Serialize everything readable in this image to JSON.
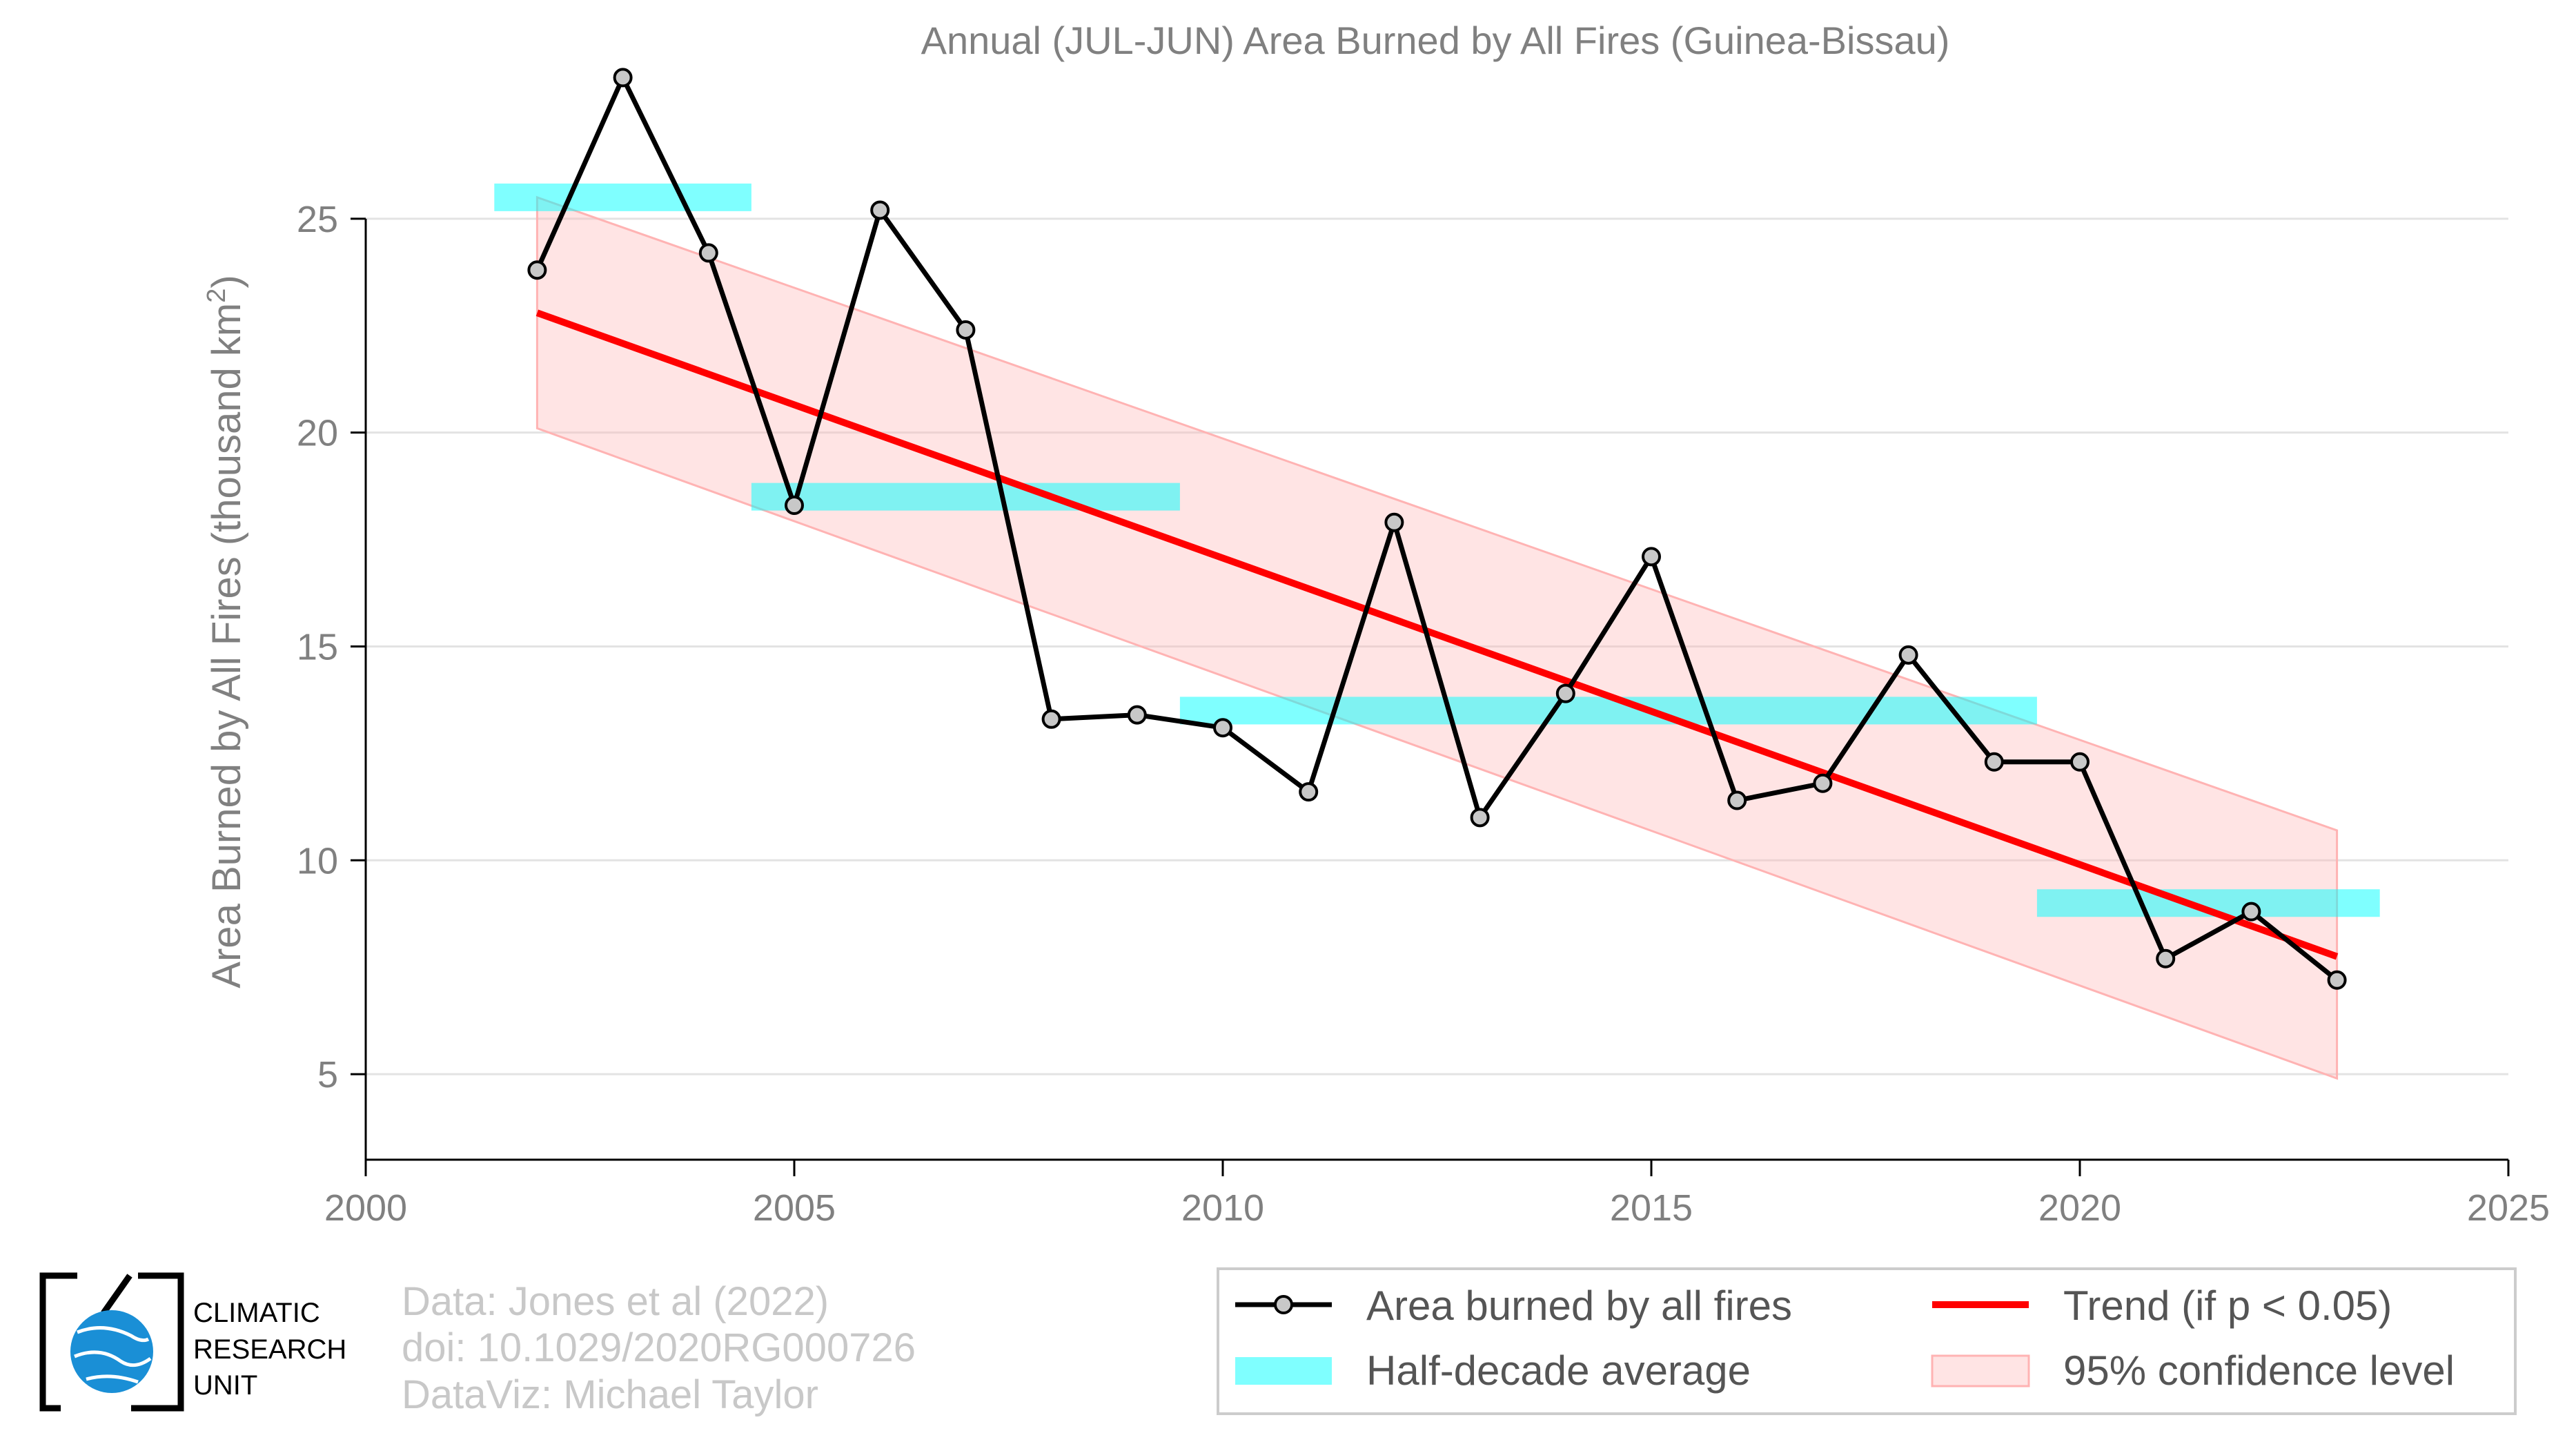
{
  "chart_data": {
    "type": "line",
    "title": "Annual (JUL-JUN) Area Burned by All Fires (Guinea-Bissau)",
    "xlabel": "",
    "ylabel_main": "Area Burned by All Fires (thousand km",
    "ylabel_sup": "2",
    "ylabel_close": ")",
    "xlim": [
      2000,
      2025
    ],
    "ylim": [
      3,
      28.5
    ],
    "x_ticks": [
      2000,
      2005,
      2010,
      2015,
      2020,
      2025
    ],
    "y_ticks": [
      5,
      10,
      15,
      20,
      25
    ],
    "grid": "horizontal",
    "series": [
      {
        "name": "Area burned by all fires",
        "color": "#000000",
        "marker_fill": "#c8c8c8",
        "x": [
          2002,
          2003,
          2004,
          2005,
          2006,
          2007,
          2008,
          2009,
          2010,
          2011,
          2012,
          2013,
          2014,
          2015,
          2016,
          2017,
          2018,
          2019,
          2020,
          2021,
          2022,
          2023
        ],
        "y": [
          23.8,
          28.3,
          24.2,
          18.3,
          25.2,
          22.4,
          13.3,
          13.4,
          13.1,
          11.6,
          17.9,
          11.0,
          13.9,
          17.1,
          11.4,
          11.8,
          14.8,
          12.3,
          12.3,
          7.7,
          8.8,
          7.2
        ]
      }
    ],
    "half_decade_average": {
      "name": "Half-decade average",
      "color": "#00ffff",
      "segments": [
        {
          "x0": 2001.5,
          "x1": 2004.5,
          "y": 25.5
        },
        {
          "x0": 2004.5,
          "x1": 2009.5,
          "y": 18.5
        },
        {
          "x0": 2009.5,
          "x1": 2019.5,
          "y": 13.5
        },
        {
          "x0": 2019.5,
          "x1": 2023.5,
          "y": 9.0
        }
      ]
    },
    "trend": {
      "name": "Trend (if p < 0.05)",
      "color": "#ff0000",
      "x": [
        2002,
        2023
      ],
      "y": [
        22.8,
        7.75
      ]
    },
    "confidence_band": {
      "name": "95% confidence level",
      "color": "#ffb3b3",
      "x": [
        2002,
        2023
      ],
      "upper": [
        25.5,
        10.7
      ],
      "lower": [
        20.1,
        4.9
      ]
    },
    "legend_position": "bottom-right"
  },
  "credits": {
    "line1": "Data: Jones et al (2022)",
    "line2": "doi: 10.1029/2020RG000726",
    "line3": "DataViz: Michael Taylor"
  },
  "logo": {
    "line1": "CLIMATIC",
    "line2": "RESEARCH",
    "line3": "UNIT"
  }
}
